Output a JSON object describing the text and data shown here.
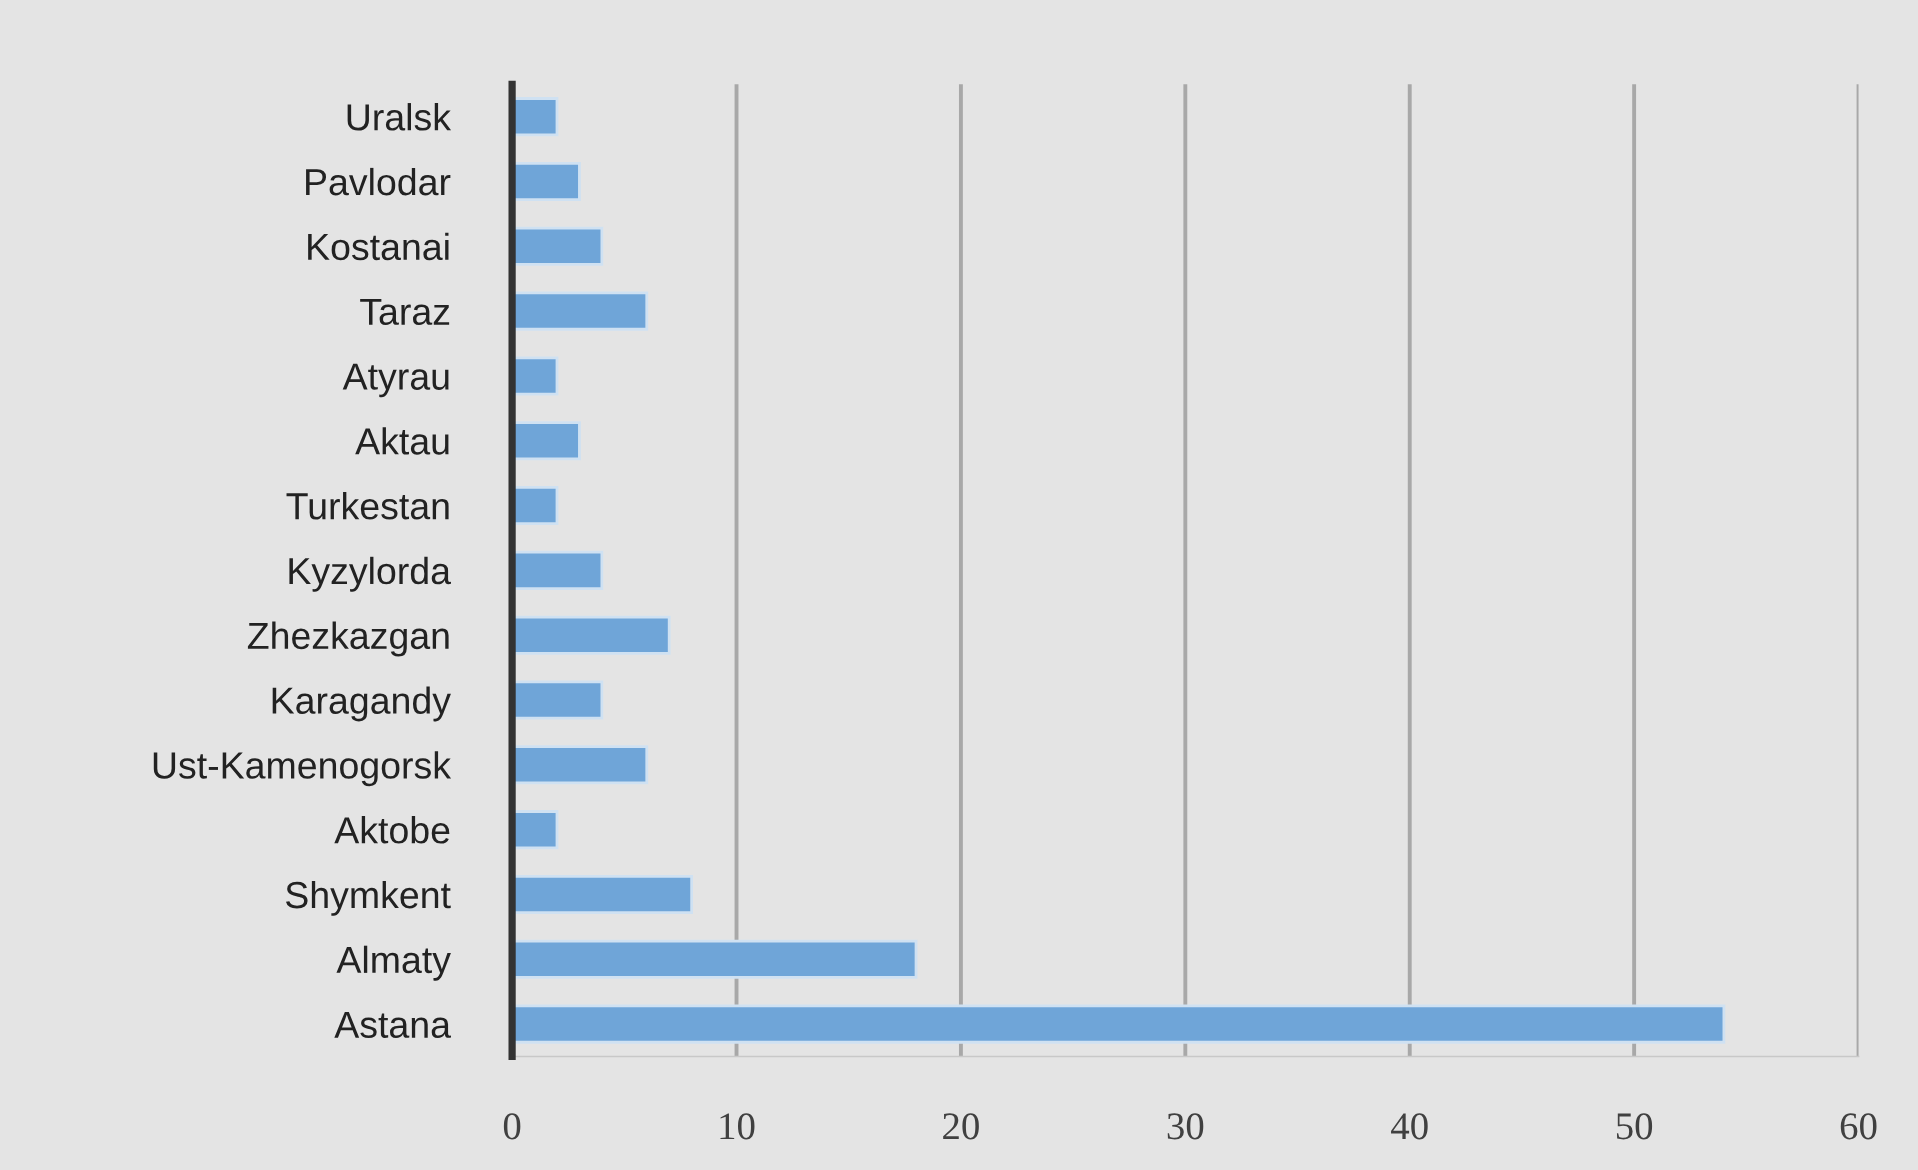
{
  "chart_data": {
    "type": "bar",
    "orientation": "horizontal",
    "categories": [
      "Uralsk",
      "Pavlodar",
      "Kostanai",
      "Taraz",
      "Atyrau",
      "Aktau",
      "Turkestan",
      "Kyzylorda",
      "Zhezkazgan",
      "Karagandy",
      "Ust-Kamenogorsk",
      "Aktobe",
      "Shymkent",
      "Almaty",
      "Astana"
    ],
    "values": [
      2,
      3,
      4,
      6,
      2,
      3,
      2,
      4,
      7,
      4,
      6,
      2,
      8,
      18,
      54
    ],
    "color": "#6fa5d8",
    "xlim": [
      0,
      60
    ],
    "xticks": [
      0,
      10,
      20,
      30,
      40,
      50,
      60
    ],
    "grid": "x"
  }
}
